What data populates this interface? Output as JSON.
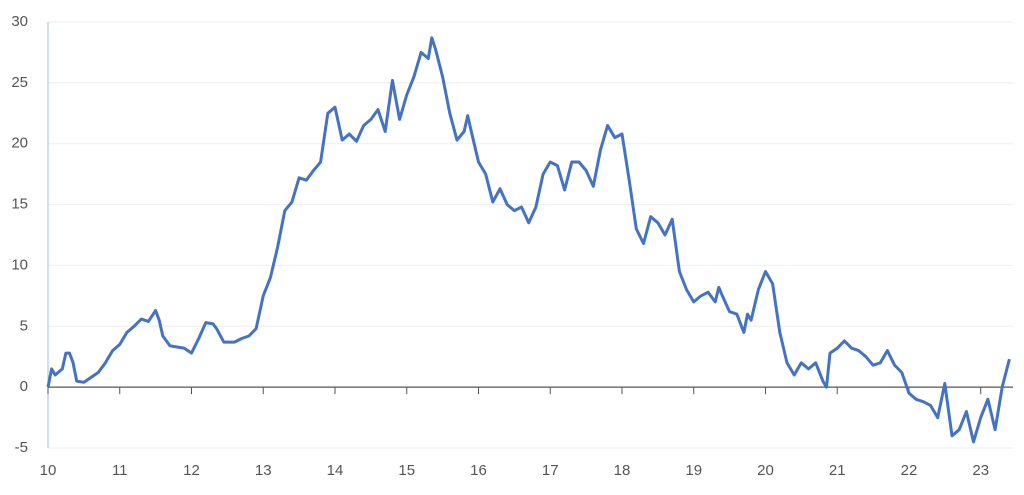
{
  "chart_data": {
    "type": "line",
    "x": [
      10.0,
      10.05,
      10.1,
      10.2,
      10.25,
      10.3,
      10.35,
      10.4,
      10.5,
      10.6,
      10.7,
      10.8,
      10.9,
      11.0,
      11.1,
      11.2,
      11.3,
      11.4,
      11.5,
      11.55,
      11.6,
      11.7,
      11.8,
      11.9,
      12.0,
      12.1,
      12.2,
      12.3,
      12.35,
      12.45,
      12.6,
      12.7,
      12.8,
      12.9,
      13.0,
      13.1,
      13.2,
      13.3,
      13.4,
      13.5,
      13.6,
      13.7,
      13.8,
      13.9,
      14.0,
      14.1,
      14.2,
      14.3,
      14.4,
      14.5,
      14.6,
      14.7,
      14.8,
      14.9,
      15.0,
      15.1,
      15.2,
      15.3,
      15.35,
      15.4,
      15.5,
      15.6,
      15.7,
      15.8,
      15.85,
      15.9,
      16.0,
      16.1,
      16.2,
      16.3,
      16.4,
      16.5,
      16.6,
      16.7,
      16.8,
      16.9,
      17.0,
      17.1,
      17.2,
      17.3,
      17.4,
      17.5,
      17.6,
      17.7,
      17.8,
      17.9,
      18.0,
      18.1,
      18.2,
      18.3,
      18.4,
      18.5,
      18.6,
      18.7,
      18.8,
      18.9,
      19.0,
      19.1,
      19.2,
      19.3,
      19.35,
      19.4,
      19.5,
      19.6,
      19.7,
      19.75,
      19.8,
      19.9,
      20.0,
      20.1,
      20.2,
      20.3,
      20.4,
      20.5,
      20.6,
      20.7,
      20.8,
      20.85,
      20.9,
      21.0,
      21.1,
      21.2,
      21.3,
      21.4,
      21.5,
      21.6,
      21.7,
      21.8,
      21.9,
      22.0,
      22.1,
      22.2,
      22.3,
      22.4,
      22.5,
      22.6,
      22.7,
      22.8,
      22.9,
      23.0,
      23.1,
      23.2,
      23.3,
      23.4
    ],
    "values": [
      0,
      1.5,
      1.0,
      1.5,
      2.8,
      2.8,
      2.0,
      0.5,
      0.4,
      0.8,
      1.2,
      2.0,
      3.0,
      3.5,
      4.5,
      5.0,
      5.6,
      5.4,
      6.3,
      5.5,
      4.2,
      3.4,
      3.3,
      3.2,
      2.8,
      4.0,
      5.3,
      5.2,
      4.8,
      3.7,
      3.7,
      4.0,
      4.2,
      4.8,
      7.5,
      9.0,
      11.5,
      14.5,
      15.2,
      17.2,
      17.0,
      17.8,
      18.5,
      22.5,
      23.0,
      20.3,
      20.8,
      20.2,
      21.5,
      22.0,
      22.8,
      21.0,
      25.2,
      22.0,
      24.0,
      25.5,
      27.5,
      27.0,
      28.7,
      27.8,
      25.5,
      22.5,
      20.3,
      21.0,
      22.3,
      21.0,
      18.5,
      17.5,
      15.2,
      16.3,
      15.0,
      14.5,
      14.8,
      13.5,
      14.8,
      17.5,
      18.5,
      18.2,
      16.2,
      18.5,
      18.5,
      17.8,
      16.5,
      19.5,
      21.5,
      20.5,
      20.8,
      17.0,
      13.0,
      11.8,
      14.0,
      13.5,
      12.5,
      13.8,
      9.5,
      8.0,
      7.0,
      7.5,
      7.8,
      7.0,
      8.2,
      7.5,
      6.2,
      6.0,
      4.5,
      6.0,
      5.5,
      8.0,
      9.5,
      8.5,
      4.5,
      2.0,
      1.0,
      2.0,
      1.5,
      2.0,
      0.5,
      0.0,
      2.8,
      3.2,
      3.8,
      3.2,
      3.0,
      2.5,
      1.8,
      2.0,
      3.0,
      1.8,
      1.2,
      -0.5,
      -1.0,
      -1.2,
      -1.5,
      -2.5,
      0.3,
      -4.0,
      -3.5,
      -2.0,
      -4.5,
      -2.5,
      -1.0,
      -3.5,
      0.0,
      2.3
    ],
    "color": "#4472c4",
    "xlim": [
      10,
      23.45
    ],
    "xticks": [
      10,
      11,
      12,
      13,
      14,
      15,
      16,
      17,
      18,
      19,
      20,
      21,
      22,
      23
    ],
    "ylim": [
      -5,
      30
    ],
    "yticks": [
      -5,
      0,
      5,
      10,
      15,
      20,
      25,
      30
    ],
    "grid": true
  }
}
